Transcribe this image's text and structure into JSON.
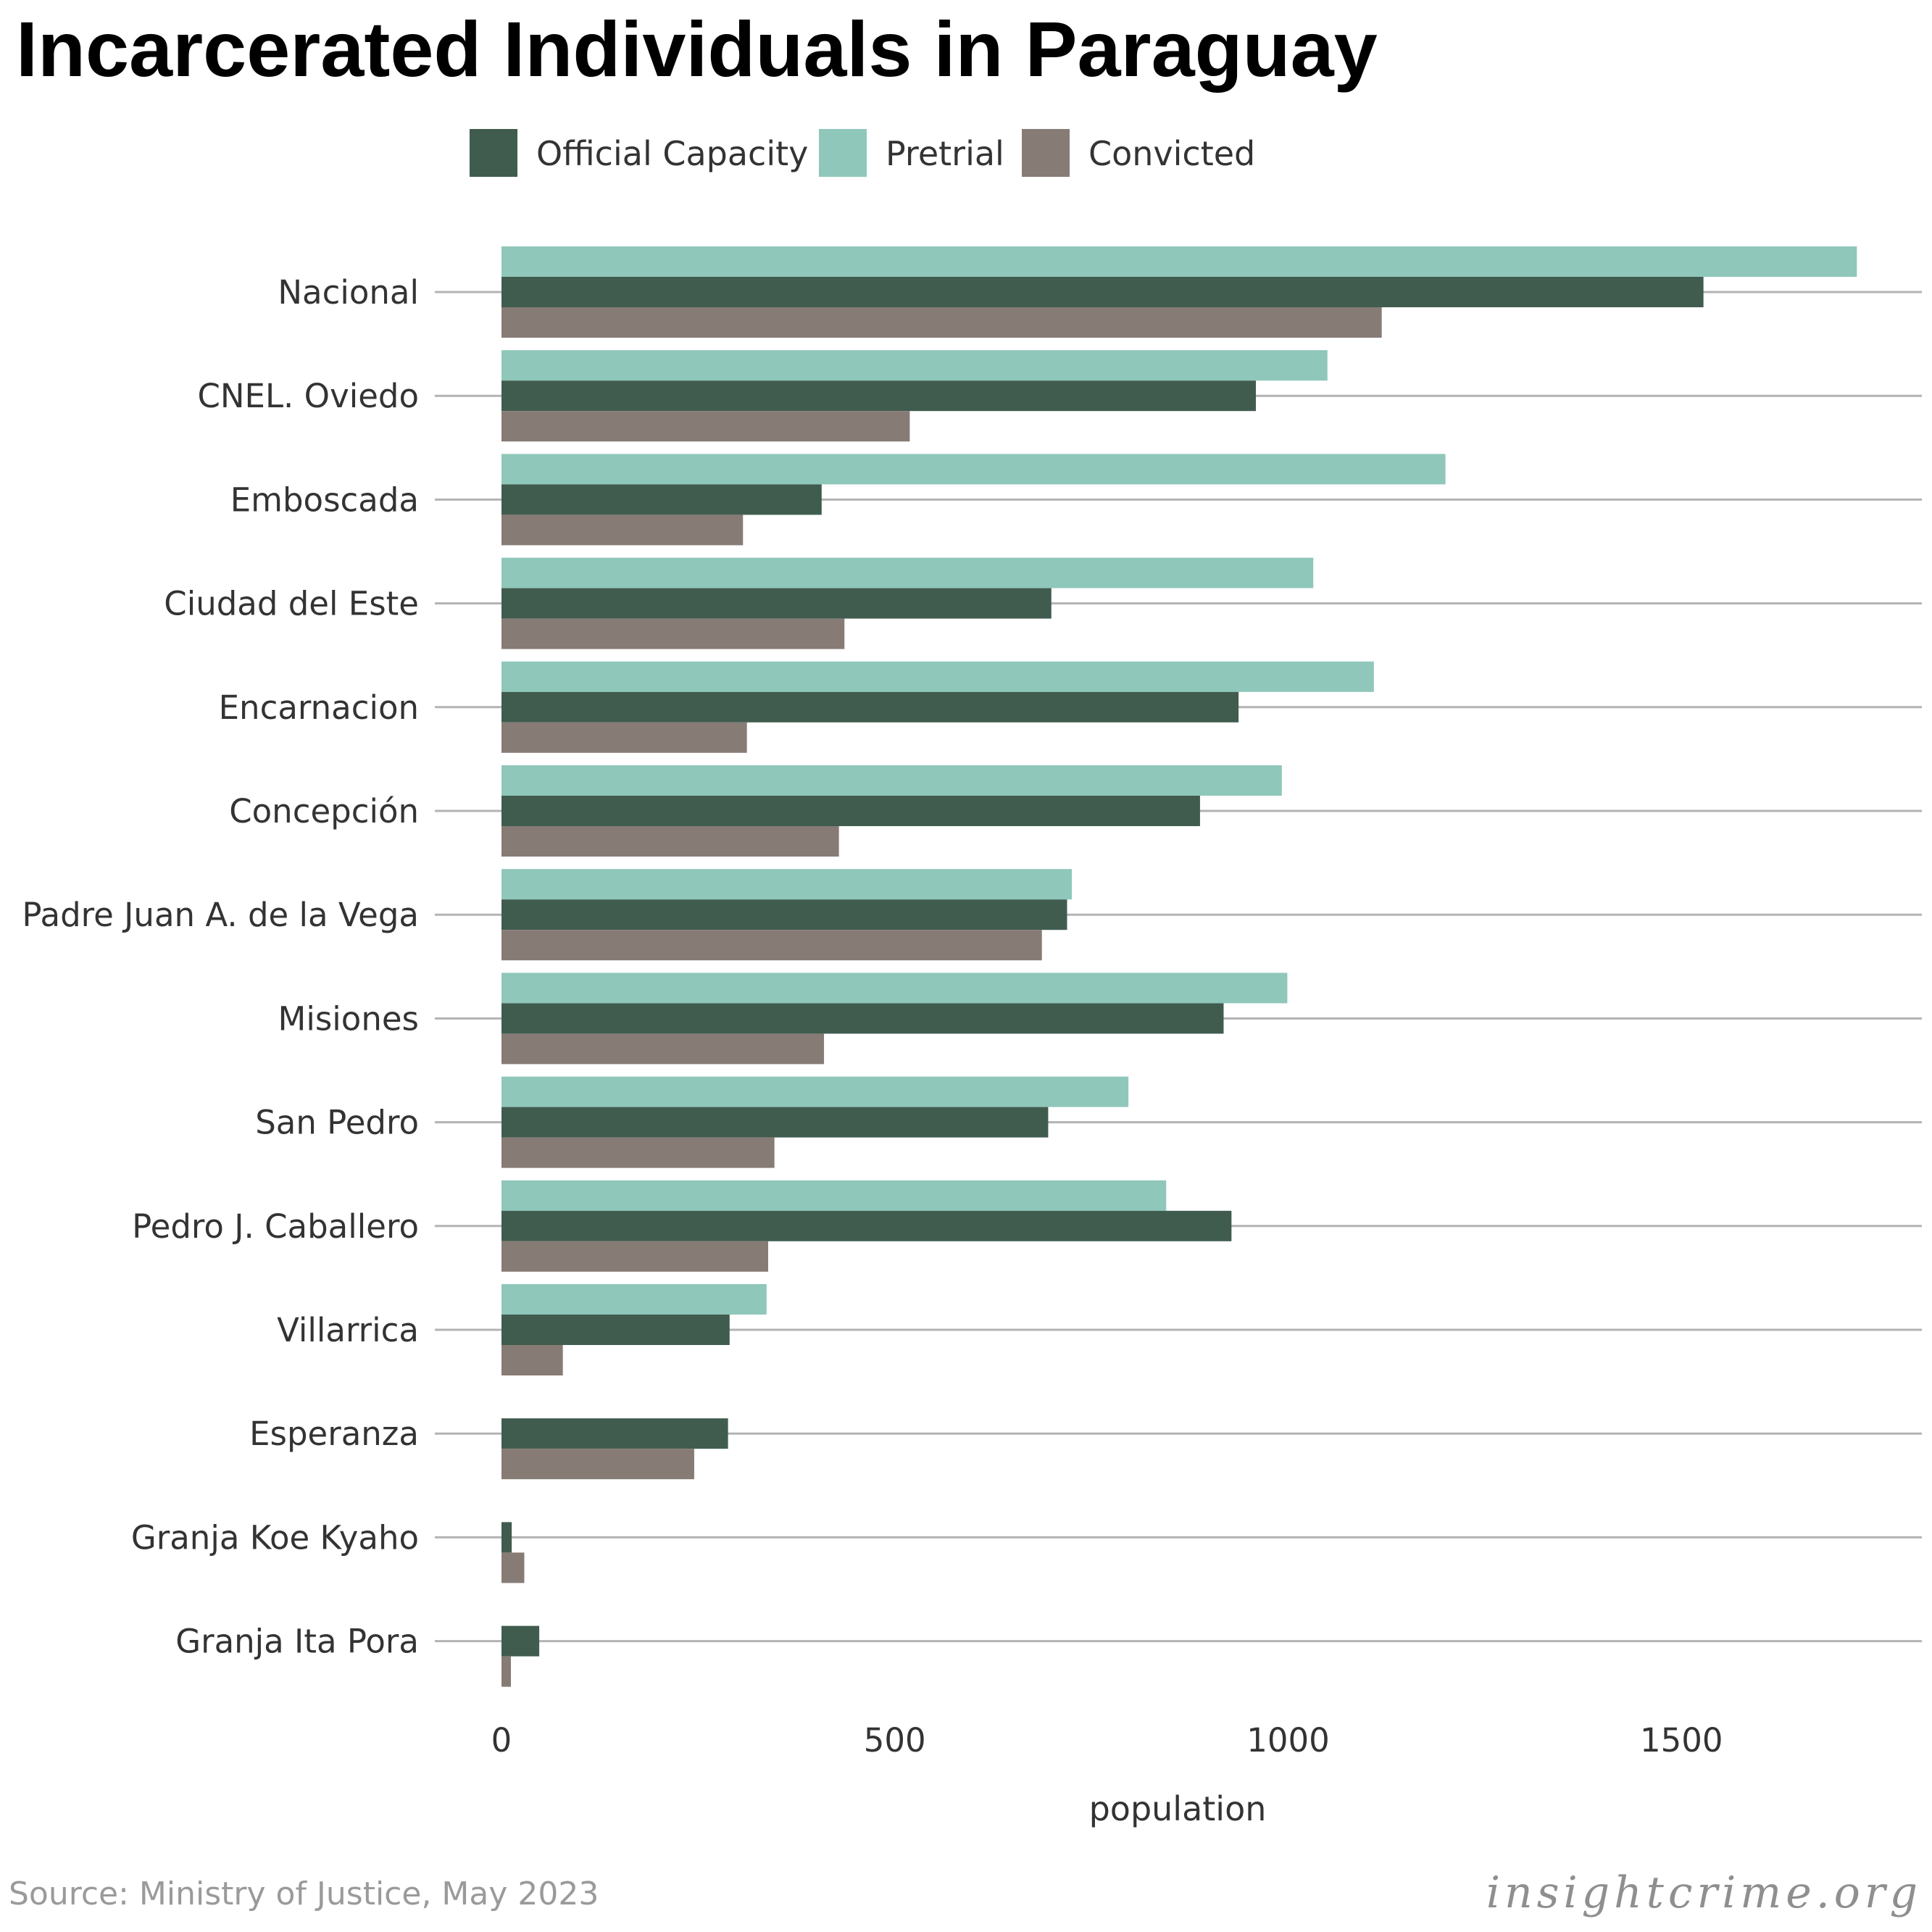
{
  "chart_data": {
    "type": "bar",
    "orientation": "horizontal",
    "title": "Incarcerated Individuals in Paraguay",
    "xlabel": "population",
    "ylabel": "",
    "xlim": [
      0,
      1800
    ],
    "xticks": [
      0,
      500,
      1000,
      1500
    ],
    "grid": true,
    "legend_position": "top",
    "categories": [
      "Nacional",
      "CNEL. Oviedo",
      "Emboscada",
      "Ciudad del Este",
      "Encarnacion",
      "Concepción",
      "Padre Juan A. de la Vega",
      "Misiones",
      "San Pedro",
      "Pedro J. Caballero",
      "Villarrica",
      "Esperanza",
      "Granja Koe Kyaho",
      "Granja Ita Pora"
    ],
    "series": [
      {
        "name": "Official Capacity",
        "color": "#405c4f",
        "values": [
          1528,
          959,
          407,
          699,
          937,
          888,
          719,
          918,
          695,
          928,
          290,
          288,
          13,
          48
        ]
      },
      {
        "name": "Pretrial",
        "color": "#8fc7ba",
        "values": [
          1723,
          1050,
          1200,
          1032,
          1109,
          992,
          725,
          999,
          797,
          845,
          337,
          0,
          0,
          0
        ]
      },
      {
        "name": "Convicted",
        "color": "#877b75",
        "values": [
          1119,
          519,
          307,
          436,
          312,
          429,
          687,
          410,
          347,
          339,
          78,
          245,
          29,
          12
        ]
      }
    ],
    "source": "Source: Ministry of Justice, May 2023",
    "brand": "insightcrime.org"
  }
}
